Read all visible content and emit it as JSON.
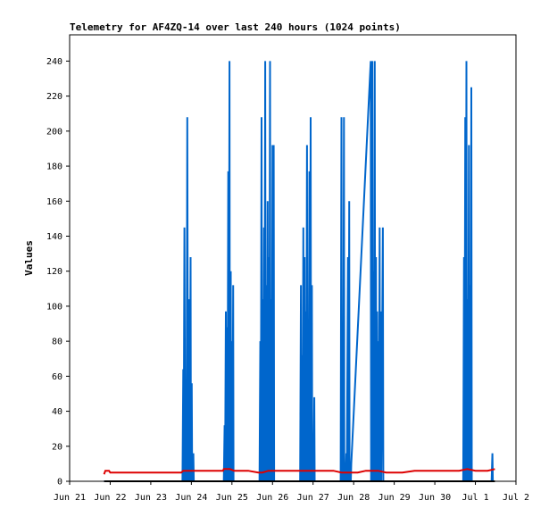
{
  "chart_data": {
    "type": "line",
    "title": "Telemetry for AF4ZQ-14 over last 240 hours (1024 points)",
    "xlabel": "",
    "ylabel": "Values",
    "ylim": [
      0,
      255
    ],
    "yticks": [
      0,
      20,
      40,
      60,
      80,
      100,
      120,
      140,
      160,
      180,
      200,
      220,
      240
    ],
    "xlim": [
      0,
      11
    ],
    "xtick_labels": [
      "Jun 21",
      "Jun 22",
      "Jun 23",
      "Jun 24",
      "Jun 25",
      "Jun 26",
      "Jun 27",
      "Jun 28",
      "Jun 29",
      "Jun 30",
      "Jul 1",
      "Jul 2"
    ],
    "grid": false,
    "series": [
      {
        "name": "",
        "color": "#0066cc",
        "points": [
          [
            0.85,
            0
          ],
          [
            2.78,
            0
          ],
          [
            2.8,
            64
          ],
          [
            2.81,
            0
          ],
          [
            2.83,
            145
          ],
          [
            2.85,
            0
          ],
          [
            2.86,
            48
          ],
          [
            2.88,
            0
          ],
          [
            2.9,
            208
          ],
          [
            2.92,
            0
          ],
          [
            2.95,
            104
          ],
          [
            2.96,
            0
          ],
          [
            2.98,
            128
          ],
          [
            2.99,
            0
          ],
          [
            3.01,
            56
          ],
          [
            3.02,
            0
          ],
          [
            3.05,
            16
          ],
          [
            3.06,
            0
          ],
          [
            3.8,
            0
          ],
          [
            3.82,
            32
          ],
          [
            3.83,
            0
          ],
          [
            3.85,
            97
          ],
          [
            3.86,
            0
          ],
          [
            3.88,
            88
          ],
          [
            3.89,
            0
          ],
          [
            3.91,
            177
          ],
          [
            3.92,
            0
          ],
          [
            3.94,
            240
          ],
          [
            3.95,
            0
          ],
          [
            3.97,
            120
          ],
          [
            3.98,
            0
          ],
          [
            4.0,
            80
          ],
          [
            4.01,
            0
          ],
          [
            4.03,
            112
          ],
          [
            4.04,
            0
          ],
          [
            4.68,
            0
          ],
          [
            4.7,
            80
          ],
          [
            4.71,
            0
          ],
          [
            4.73,
            208
          ],
          [
            4.74,
            0
          ],
          [
            4.76,
            104
          ],
          [
            4.77,
            0
          ],
          [
            4.79,
            145
          ],
          [
            4.8,
            0
          ],
          [
            4.82,
            240
          ],
          [
            4.83,
            0
          ],
          [
            4.85,
            112
          ],
          [
            4.86,
            0
          ],
          [
            4.88,
            160
          ],
          [
            4.89,
            0
          ],
          [
            4.91,
            128
          ],
          [
            4.92,
            0
          ],
          [
            4.94,
            240
          ],
          [
            4.95,
            0
          ],
          [
            4.97,
            104
          ],
          [
            4.98,
            0
          ],
          [
            5.0,
            192
          ],
          [
            5.01,
            0
          ],
          [
            5.03,
            192
          ],
          [
            5.04,
            0
          ],
          [
            5.68,
            0
          ],
          [
            5.7,
            112
          ],
          [
            5.71,
            0
          ],
          [
            5.73,
            72
          ],
          [
            5.74,
            0
          ],
          [
            5.76,
            145
          ],
          [
            5.77,
            0
          ],
          [
            5.79,
            128
          ],
          [
            5.8,
            0
          ],
          [
            5.82,
            97
          ],
          [
            5.83,
            0
          ],
          [
            5.85,
            192
          ],
          [
            5.86,
            0
          ],
          [
            5.88,
            64
          ],
          [
            5.89,
            0
          ],
          [
            5.91,
            177
          ],
          [
            5.92,
            0
          ],
          [
            5.94,
            208
          ],
          [
            5.95,
            0
          ],
          [
            5.97,
            112
          ],
          [
            5.98,
            0
          ],
          [
            6.0,
            24
          ],
          [
            6.01,
            0
          ],
          [
            6.03,
            48
          ],
          [
            6.04,
            0
          ],
          [
            6.68,
            0
          ],
          [
            6.7,
            208
          ],
          [
            6.71,
            0
          ],
          [
            6.73,
            16
          ],
          [
            6.74,
            0
          ],
          [
            6.76,
            208
          ],
          [
            6.77,
            0
          ],
          [
            6.79,
            8
          ],
          [
            6.8,
            0
          ],
          [
            6.82,
            16
          ],
          [
            6.83,
            0
          ],
          [
            6.86,
            128
          ],
          [
            6.87,
            0
          ],
          [
            6.89,
            160
          ],
          [
            6.9,
            0
          ],
          [
            6.92,
            10
          ],
          [
            6.93,
            0
          ],
          [
            6.94,
            10
          ],
          [
            7.42,
            240
          ],
          [
            7.43,
            0
          ],
          [
            7.46,
            240
          ],
          [
            7.47,
            0
          ],
          [
            7.49,
            120
          ],
          [
            7.5,
            0
          ],
          [
            7.52,
            240
          ],
          [
            7.53,
            0
          ],
          [
            7.55,
            128
          ],
          [
            7.56,
            0
          ],
          [
            7.58,
            97
          ],
          [
            7.59,
            0
          ],
          [
            7.61,
            80
          ],
          [
            7.62,
            0
          ],
          [
            7.64,
            145
          ],
          [
            7.65,
            0
          ],
          [
            7.67,
            97
          ],
          [
            7.68,
            0
          ],
          [
            7.72,
            145
          ],
          [
            7.73,
            0
          ],
          [
            9.7,
            0
          ],
          [
            9.72,
            128
          ],
          [
            9.73,
            0
          ],
          [
            9.75,
            208
          ],
          [
            9.76,
            0
          ],
          [
            9.78,
            240
          ],
          [
            9.79,
            0
          ],
          [
            9.81,
            104
          ],
          [
            9.82,
            0
          ],
          [
            9.84,
            192
          ],
          [
            9.85,
            0
          ],
          [
            9.87,
            112
          ],
          [
            9.88,
            0
          ],
          [
            9.9,
            225
          ],
          [
            9.91,
            0
          ],
          [
            10.4,
            0
          ],
          [
            10.42,
            16
          ],
          [
            10.43,
            0
          ],
          [
            10.45,
            0
          ]
        ]
      },
      {
        "name": "",
        "color": "#dd0000",
        "points": [
          [
            0.85,
            4
          ],
          [
            0.88,
            6
          ],
          [
            0.97,
            6
          ],
          [
            1.0,
            5
          ],
          [
            1.5,
            5
          ],
          [
            2.0,
            5
          ],
          [
            2.5,
            5
          ],
          [
            2.75,
            5
          ],
          [
            2.8,
            6
          ],
          [
            2.9,
            6
          ],
          [
            3.0,
            6
          ],
          [
            3.5,
            6
          ],
          [
            3.78,
            6
          ],
          [
            3.8,
            7
          ],
          [
            3.95,
            7
          ],
          [
            4.05,
            6
          ],
          [
            4.4,
            6
          ],
          [
            4.65,
            5
          ],
          [
            4.75,
            5
          ],
          [
            4.9,
            6
          ],
          [
            5.2,
            6
          ],
          [
            5.7,
            6
          ],
          [
            6.0,
            6
          ],
          [
            6.5,
            6
          ],
          [
            6.7,
            5
          ],
          [
            6.9,
            5
          ],
          [
            7.1,
            5
          ],
          [
            7.3,
            6
          ],
          [
            7.6,
            6
          ],
          [
            7.8,
            5
          ],
          [
            8.2,
            5
          ],
          [
            8.5,
            6
          ],
          [
            9.0,
            6
          ],
          [
            9.6,
            6
          ],
          [
            9.8,
            7
          ],
          [
            10.0,
            6
          ],
          [
            10.3,
            6
          ],
          [
            10.48,
            7
          ]
        ]
      },
      {
        "name": "",
        "color": "#000000",
        "points": [
          [
            0.85,
            0
          ],
          [
            10.48,
            0
          ]
        ]
      }
    ]
  }
}
